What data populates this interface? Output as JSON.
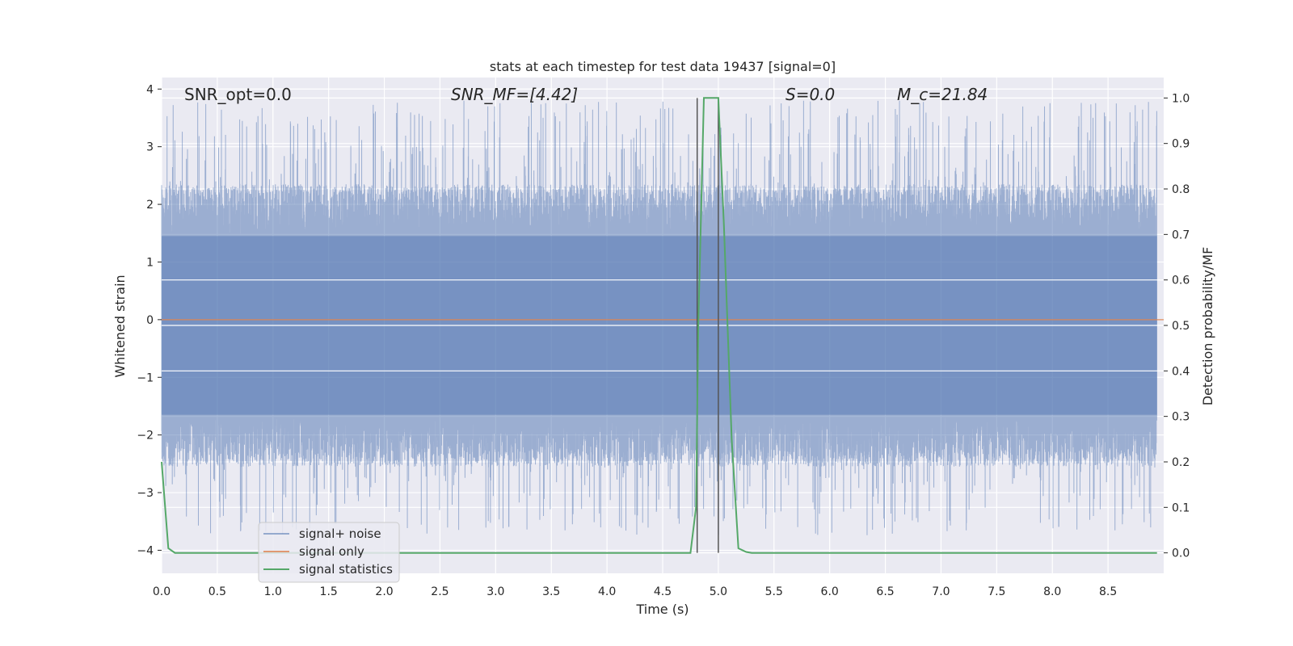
{
  "chart_data": {
    "type": "line",
    "title": "stats at each timestep for test data 19437 [signal=0]",
    "xlabel": "Time (s)",
    "ylabel": "Whitened strain",
    "ylabel_right": "Detection probability/MF",
    "xlim": [
      0.0,
      9.0
    ],
    "ylim": [
      -4.4,
      4.2
    ],
    "ylim_right": [
      -0.045,
      1.045
    ],
    "x_ticks": [
      0.0,
      0.5,
      1.0,
      1.5,
      2.0,
      2.5,
      3.0,
      3.5,
      4.0,
      4.5,
      5.0,
      5.5,
      6.0,
      6.5,
      7.0,
      7.5,
      8.0,
      8.5
    ],
    "x_tick_labels": [
      "0.0",
      "0.5",
      "1.0",
      "1.5",
      "2.0",
      "2.5",
      "3.0",
      "3.5",
      "4.0",
      "4.5",
      "5.0",
      "5.5",
      "6.0",
      "6.5",
      "7.0",
      "7.5",
      "8.0",
      "8.5"
    ],
    "y_ticks": [
      4,
      3,
      2,
      1,
      0,
      -1,
      -2,
      -3,
      -4
    ],
    "y_tick_labels": [
      "4",
      "3",
      "2",
      "1",
      "0",
      "−1",
      "−2",
      "−3",
      "−4"
    ],
    "y_right_ticks": [
      1.0,
      0.9,
      0.8,
      0.7,
      0.6,
      0.5,
      0.4,
      0.3,
      0.2,
      0.1,
      0.0
    ],
    "y_right_tick_labels": [
      "1.0",
      "0.9",
      "0.8",
      "0.7",
      "0.6",
      "0.5",
      "0.4",
      "0.3",
      "0.2",
      "0.1",
      "0.0"
    ],
    "grid": true,
    "legend_position": "lower-left",
    "annotations": {
      "snr_opt": "SNR_opt=0.0",
      "snr_mf": "SNR_MF=[4.42]",
      "s_value": "S=0.0",
      "mc_value": "M_c=21.84"
    },
    "vertical_lines_x": [
      4.81,
      5.0
    ],
    "series": [
      {
        "name": "signal+ noise",
        "color": "#4c72b0",
        "kind": "noise",
        "samples_hz": 512,
        "band": [
          -1.65,
          1.45
        ],
        "peak_range": [
          -3.75,
          3.8
        ]
      },
      {
        "name": "signal only",
        "color": "#dd8452",
        "x": [
          0.0,
          9.0
        ],
        "y": [
          0.0,
          0.0
        ]
      },
      {
        "name": "signal statistics",
        "color": "#55a868",
        "axis": "right",
        "x": [
          0.0,
          0.06,
          0.12,
          0.5,
          1.0,
          2.0,
          3.0,
          4.0,
          4.75,
          4.8,
          4.82,
          4.87,
          4.9,
          5.0,
          5.05,
          5.12,
          5.18,
          5.25,
          5.3,
          5.45,
          5.55,
          6.5,
          7.0,
          8.0,
          8.94
        ],
        "y": [
          0.2,
          0.01,
          0.0,
          0.0,
          0.0,
          0.0,
          0.0,
          0.0,
          0.0,
          0.1,
          0.5,
          1.0,
          1.0,
          1.0,
          0.72,
          0.25,
          0.01,
          0.002,
          0.0,
          0.0,
          0.0,
          0.0,
          0.0,
          0.0,
          0.0
        ]
      }
    ]
  }
}
